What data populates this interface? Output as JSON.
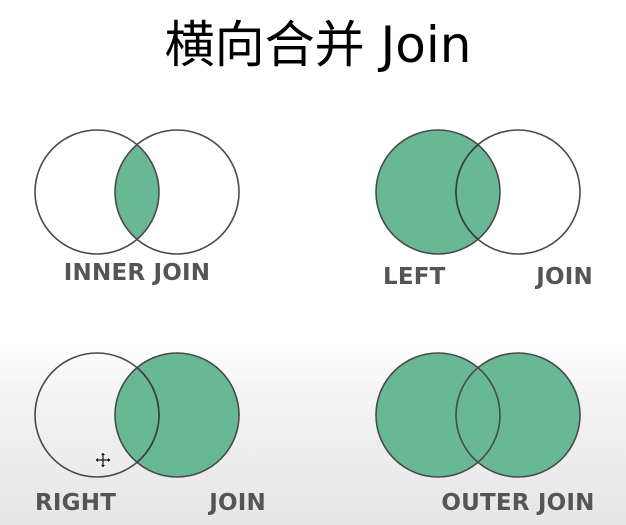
{
  "title": "横向合并 Join",
  "fill_color": "#68b894",
  "diagrams": [
    {
      "id": "inner",
      "labels": [
        "INNER JOIN"
      ]
    },
    {
      "id": "left",
      "labels": [
        "LEFT",
        "JOIN"
      ]
    },
    {
      "id": "right",
      "labels": [
        "RIGHT",
        "JOIN"
      ]
    },
    {
      "id": "outer",
      "labels": [
        "OUTER JOIN"
      ]
    }
  ],
  "cursor_icon": "move-cursor-icon"
}
